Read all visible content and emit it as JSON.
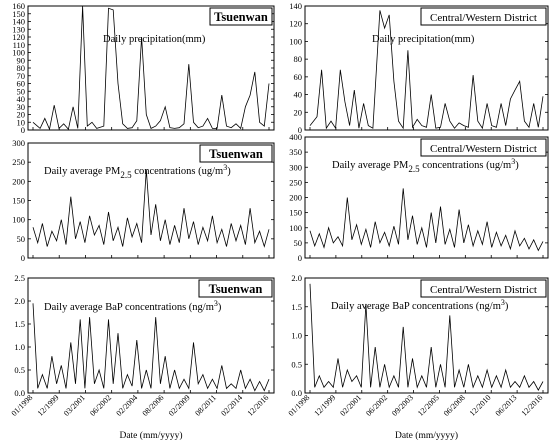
{
  "chart_data": [
    {
      "type": "line",
      "station": "Tsuenwan",
      "annotation": "Daily precipitation(mm)",
      "ylim": [
        0,
        160
      ],
      "yticks": [
        0,
        10,
        20,
        30,
        40,
        50,
        60,
        70,
        80,
        90,
        100,
        110,
        120,
        130,
        140,
        150,
        160
      ],
      "x": [
        0,
        3,
        5,
        7,
        9,
        11,
        13,
        15,
        17,
        19,
        21,
        23,
        25,
        27,
        30,
        32,
        34,
        36,
        38,
        40,
        42,
        44,
        46,
        48,
        50,
        52,
        54,
        56,
        58,
        60,
        62,
        64,
        66,
        68,
        70,
        72,
        74,
        76,
        78,
        80,
        82,
        84,
        86,
        88,
        90,
        92,
        94,
        96,
        98,
        100
      ],
      "values": [
        10,
        2,
        15,
        1,
        32,
        2,
        8,
        1,
        30,
        2,
        160,
        5,
        10,
        2,
        5,
        157,
        155,
        60,
        8,
        2,
        3,
        12,
        120,
        20,
        2,
        5,
        12,
        30,
        3,
        2,
        3,
        8,
        85,
        10,
        3,
        5,
        15,
        2,
        2,
        45,
        5,
        3,
        8,
        2,
        30,
        45,
        75,
        10,
        5,
        60
      ]
    },
    {
      "type": "line",
      "station": "Central/Western District",
      "annotation": "Daily precipitation(mm)",
      "ylim": [
        0,
        140
      ],
      "yticks": [
        0,
        20,
        40,
        60,
        80,
        100,
        120,
        140
      ],
      "x": [
        0,
        3,
        5,
        7,
        9,
        11,
        13,
        15,
        17,
        19,
        21,
        23,
        25,
        27,
        30,
        32,
        34,
        36,
        38,
        40,
        42,
        44,
        46,
        48,
        50,
        52,
        54,
        56,
        58,
        60,
        62,
        64,
        66,
        68,
        70,
        72,
        74,
        76,
        78,
        80,
        82,
        84,
        86,
        88,
        90,
        92,
        94,
        96,
        98,
        100
      ],
      "values": [
        5,
        15,
        68,
        2,
        10,
        2,
        68,
        32,
        5,
        45,
        2,
        30,
        5,
        2,
        135,
        115,
        130,
        55,
        10,
        2,
        90,
        3,
        12,
        5,
        3,
        40,
        2,
        3,
        30,
        10,
        2,
        8,
        5,
        3,
        62,
        10,
        2,
        30,
        5,
        3,
        30,
        5,
        35,
        45,
        55,
        10,
        3,
        30,
        3,
        38
      ]
    },
    {
      "type": "line",
      "station": "Tsuenwan",
      "annotation": "Daily average PM2.5 concentrations (ug/m3)",
      "ylim": [
        0,
        300
      ],
      "yticks": [
        0,
        50,
        100,
        150,
        200,
        250,
        300
      ],
      "x": [
        0,
        2,
        4,
        6,
        8,
        10,
        12,
        14,
        16,
        18,
        20,
        22,
        24,
        26,
        28,
        30,
        32,
        34,
        36,
        38,
        40,
        42,
        44,
        46,
        48,
        50,
        52,
        54,
        56,
        58,
        60,
        62,
        64,
        66,
        68,
        70,
        72,
        74,
        76,
        78,
        80,
        82,
        84,
        86,
        88,
        90,
        92,
        94,
        96,
        98,
        100
      ],
      "values": [
        80,
        40,
        90,
        30,
        70,
        45,
        100,
        35,
        160,
        50,
        95,
        40,
        110,
        60,
        85,
        35,
        120,
        45,
        80,
        30,
        105,
        55,
        90,
        40,
        230,
        60,
        140,
        45,
        100,
        35,
        85,
        40,
        130,
        50,
        95,
        35,
        80,
        45,
        110,
        40,
        75,
        30,
        90,
        45,
        85,
        35,
        130,
        40,
        70,
        30,
        75
      ]
    },
    {
      "type": "line",
      "station": "Central/Western District",
      "annotation": "Daily average PM2.5 concentrations (ug/m3)",
      "ylim": [
        0,
        400
      ],
      "yticks": [
        0,
        50,
        100,
        150,
        200,
        250,
        300,
        350,
        400
      ],
      "x": [
        0,
        2,
        4,
        6,
        8,
        10,
        12,
        14,
        16,
        18,
        20,
        22,
        24,
        26,
        28,
        30,
        32,
        34,
        36,
        38,
        40,
        42,
        44,
        46,
        48,
        50,
        52,
        54,
        56,
        58,
        60,
        62,
        64,
        66,
        68,
        70,
        72,
        74,
        76,
        78,
        80,
        82,
        84,
        86,
        88,
        90,
        92,
        94,
        96,
        98,
        100
      ],
      "values": [
        90,
        40,
        80,
        35,
        100,
        50,
        70,
        40,
        200,
        60,
        110,
        45,
        95,
        35,
        120,
        50,
        85,
        40,
        105,
        45,
        230,
        60,
        140,
        45,
        100,
        35,
        150,
        50,
        170,
        45,
        95,
        35,
        160,
        50,
        110,
        40,
        90,
        45,
        120,
        35,
        85,
        40,
        75,
        30,
        90,
        40,
        65,
        30,
        60,
        25,
        55
      ]
    },
    {
      "type": "line",
      "station": "Tsuenwan",
      "annotation": "Daily average BaP concentrations (ng/m3)",
      "ylim": [
        0,
        2.5
      ],
      "yticks": [
        0,
        0.5,
        1.0,
        1.5,
        2.0,
        2.5
      ],
      "xticks": [
        "01/1998",
        "12/1999",
        "03/2001",
        "06/2002",
        "02/2004",
        "08/2006",
        "02/2009",
        "08/2011",
        "02/2014",
        "12/2016"
      ],
      "xlabel": "Date (mm/yyyy)",
      "x": [
        0,
        2,
        4,
        6,
        8,
        10,
        12,
        14,
        16,
        18,
        20,
        22,
        24,
        26,
        28,
        30,
        32,
        34,
        36,
        38,
        40,
        42,
        44,
        46,
        48,
        50,
        52,
        54,
        56,
        58,
        60,
        62,
        64,
        66,
        68,
        70,
        72,
        74,
        76,
        78,
        80,
        82,
        84,
        86,
        88,
        90,
        92,
        94,
        96,
        98,
        100
      ],
      "values": [
        1.95,
        0.1,
        0.4,
        0.1,
        0.8,
        0.2,
        0.6,
        0.1,
        1.1,
        0.2,
        1.6,
        0.1,
        1.65,
        0.2,
        0.5,
        0.1,
        1.6,
        0.2,
        1.3,
        0.1,
        0.4,
        0.15,
        1.15,
        0.1,
        0.5,
        0.1,
        1.65,
        0.2,
        0.8,
        0.1,
        0.5,
        0.1,
        0.3,
        0.1,
        1.1,
        0.2,
        0.4,
        0.1,
        0.3,
        0.1,
        0.6,
        0.1,
        0.2,
        0.1,
        0.5,
        0.1,
        0.3,
        0.05,
        0.25,
        0.05,
        0.3
      ]
    },
    {
      "type": "line",
      "station": "Central/Western District",
      "annotation": "Daily average BaP concentrations (ng/m3)",
      "ylim": [
        0,
        2.0
      ],
      "yticks": [
        0,
        0.5,
        1.0,
        1.5,
        2.0
      ],
      "xticks": [
        "01/1998",
        "12/1999",
        "02/2001",
        "06/2002",
        "09/2003",
        "12/2005",
        "06/2008",
        "12/2010",
        "06/2013",
        "12/2016"
      ],
      "xlabel": "Date (mm/yyyy)",
      "x": [
        0,
        2,
        4,
        6,
        8,
        10,
        12,
        14,
        16,
        18,
        20,
        22,
        24,
        26,
        28,
        30,
        32,
        34,
        36,
        38,
        40,
        42,
        44,
        46,
        48,
        50,
        52,
        54,
        56,
        58,
        60,
        62,
        64,
        66,
        68,
        70,
        72,
        74,
        76,
        78,
        80,
        82,
        84,
        86,
        88,
        90,
        92,
        94,
        96,
        98,
        100
      ],
      "values": [
        1.9,
        0.1,
        0.3,
        0.1,
        0.2,
        0.1,
        0.6,
        0.1,
        0.4,
        0.2,
        0.3,
        0.1,
        1.55,
        0.1,
        0.8,
        0.1,
        0.5,
        0.1,
        0.3,
        0.1,
        1.15,
        0.1,
        0.6,
        0.1,
        0.3,
        0.1,
        0.8,
        0.1,
        0.5,
        0.1,
        1.35,
        0.1,
        0.4,
        0.1,
        0.5,
        0.1,
        0.3,
        0.1,
        0.4,
        0.1,
        0.3,
        0.1,
        0.4,
        0.1,
        0.2,
        0.1,
        0.3,
        0.1,
        0.2,
        0.05,
        0.2
      ]
    }
  ]
}
